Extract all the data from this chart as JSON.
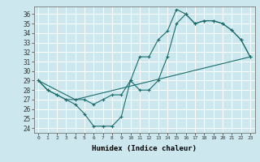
{
  "title": "",
  "xlabel": "Humidex (Indice chaleur)",
  "bg_color": "#cce8ee",
  "line_color": "#1a6b6b",
  "grid_color": "#ffffff",
  "xlim": [
    -0.5,
    23.5
  ],
  "ylim": [
    23.5,
    36.8
  ],
  "yticks": [
    24,
    25,
    26,
    27,
    28,
    29,
    30,
    31,
    32,
    33,
    34,
    35,
    36
  ],
  "xticks": [
    0,
    1,
    2,
    3,
    4,
    5,
    6,
    7,
    8,
    9,
    10,
    11,
    12,
    13,
    14,
    15,
    16,
    17,
    18,
    19,
    20,
    21,
    22,
    23
  ],
  "line1_x": [
    0,
    1,
    2,
    3,
    4,
    5,
    6,
    7,
    8,
    9,
    10,
    11,
    12,
    13,
    14,
    15,
    16,
    17,
    18,
    19,
    20,
    21,
    22,
    23
  ],
  "line1_y": [
    29.0,
    28.0,
    27.5,
    27.0,
    26.5,
    25.5,
    24.2,
    24.2,
    24.2,
    25.2,
    29.0,
    31.5,
    31.5,
    33.3,
    34.2,
    36.5,
    36.0,
    35.0,
    35.3,
    35.3,
    35.0,
    34.3,
    33.3,
    31.5
  ],
  "line2_x": [
    0,
    1,
    2,
    3,
    4,
    5,
    6,
    7,
    8,
    9,
    10,
    11,
    12,
    13,
    14,
    15,
    16,
    17,
    18,
    19,
    20,
    21,
    22,
    23
  ],
  "line2_y": [
    29.0,
    28.0,
    27.5,
    27.0,
    27.0,
    27.0,
    26.5,
    27.0,
    27.5,
    27.5,
    29.0,
    28.0,
    28.0,
    29.0,
    31.5,
    35.0,
    36.0,
    35.0,
    35.3,
    35.3,
    35.0,
    34.3,
    33.3,
    31.5
  ],
  "line3_x": [
    0,
    4,
    23
  ],
  "line3_y": [
    29.0,
    27.0,
    31.5
  ]
}
